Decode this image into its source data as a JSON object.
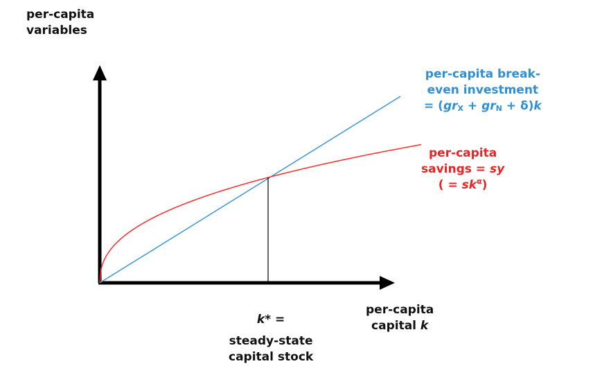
{
  "diagram": {
    "y_axis_label": [
      "per-capita",
      "variables"
    ],
    "x_axis_label": {
      "line1": "per-capita",
      "line2_text": "capital ",
      "line2_var": "k"
    },
    "breakeven_label": {
      "line1": "per-capita break-",
      "line2": "even investment",
      "eq_open": "= (",
      "gr1": "gr",
      "sub1": "X",
      "plus1": " + ",
      "gr2": "gr",
      "sub2": "N",
      "plus2": " + δ)",
      "k": "k"
    },
    "savings_label": {
      "line1": "per-capita",
      "line2_text": "savings = ",
      "line2_var": "sy",
      "line3_open": "( = ",
      "line3_var": "sk",
      "line3_sup": "α",
      "line3_close": ")"
    },
    "steady_state_label": {
      "kstar_var": "k",
      "kstar_rest": "* =",
      "line2": "steady-state",
      "line3": "capital stock"
    },
    "colors": {
      "axis": "#000000",
      "breakeven": "#3a95d4",
      "savings": "#ff2a2a",
      "dropline": "#000000"
    }
  }
}
